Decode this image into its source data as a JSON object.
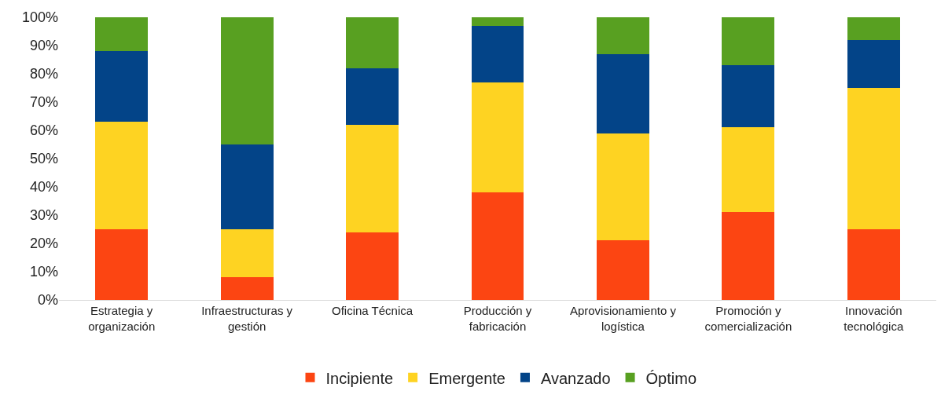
{
  "chart_data": {
    "type": "bar",
    "stacked": true,
    "categories": [
      "Estrategia y organización",
      "Infraestructuras y gestión",
      "Oficina Técnica",
      "Producción y fabricación",
      "Aprovisionamiento y logística",
      "Promoción y comercialización",
      "Innovación tecnológica"
    ],
    "series": [
      {
        "name": "Incipiente",
        "color": "#fc4512",
        "values": [
          25,
          8,
          24,
          38,
          21,
          31,
          25
        ]
      },
      {
        "name": "Emergente",
        "color": "#fed322",
        "values": [
          38,
          17,
          38,
          39,
          38,
          30,
          50
        ]
      },
      {
        "name": "Avanzado",
        "color": "#034488",
        "values": [
          25,
          30,
          20,
          20,
          28,
          22,
          17
        ]
      },
      {
        "name": "Óptimo",
        "color": "#58a021",
        "values": [
          12,
          45,
          18,
          3,
          13,
          17,
          8
        ]
      }
    ],
    "ylim": [
      0,
      100
    ],
    "yticks": [
      {
        "value": 0,
        "label": "0%"
      },
      {
        "value": 10,
        "label": "10%"
      },
      {
        "value": 20,
        "label": "20%"
      },
      {
        "value": 30,
        "label": "30%"
      },
      {
        "value": 40,
        "label": "40%"
      },
      {
        "value": 50,
        "label": "50%"
      },
      {
        "value": 60,
        "label": "60%"
      },
      {
        "value": 70,
        "label": "70%"
      },
      {
        "value": 80,
        "label": "80%"
      },
      {
        "value": 90,
        "label": "90%"
      },
      {
        "value": 100,
        "label": "100%"
      }
    ],
    "grid": false,
    "legend": "bottom"
  }
}
